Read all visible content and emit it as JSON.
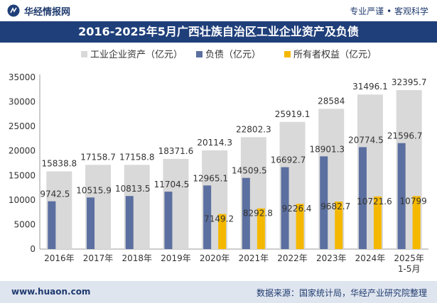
{
  "header": {
    "brand": "华经情报网",
    "tagline": "专业严谨 • 客观科学",
    "title": "2016-2025年5月广西壮族自治区工业企业资产及负债"
  },
  "footer": {
    "website": "www.huaon.com",
    "source": "数据来源：国家统计局，华经产业研究院整理"
  },
  "colors": {
    "assets": "#d9d9d9",
    "liabilities": "#5b6fa0",
    "equity": "#f5b800",
    "title_bg": "#1f3f7a",
    "footer_bg": "#dfe5ef"
  },
  "chart_data": {
    "type": "bar",
    "title": "",
    "xlabel": "",
    "ylabel": "",
    "categories": [
      "2016年",
      "2017年",
      "2018年",
      "2019年",
      "2020年",
      "2021年",
      "2022年",
      "2023年",
      "2024年",
      "2025年\n1-5月"
    ],
    "series": [
      {
        "name": "工业企业资产（亿元）",
        "values": [
          15838.8,
          17158.7,
          17158.8,
          18371.6,
          20114.3,
          22802.3,
          25919.1,
          28584,
          31496.1,
          32395.7
        ],
        "labels": [
          "15838.8",
          "17158.7",
          "17158.8",
          "18371.6",
          "20114.3",
          "22802.3",
          "25919.1",
          "28584",
          "31496.1",
          "32395.7"
        ]
      },
      {
        "name": "负债（亿元）",
        "values": [
          9742.5,
          10515.9,
          10813.5,
          11704.5,
          12965.1,
          14509.5,
          16692.7,
          18901.3,
          20774.5,
          21596.7
        ],
        "labels": [
          "9742.5",
          "10515.9",
          "10813.5",
          "11704.5",
          "12965.1",
          "14509.5",
          "16692.7",
          "18901.3",
          "20774.5",
          "21596.7"
        ]
      },
      {
        "name": "所有者权益（亿元）",
        "values": [
          null,
          null,
          null,
          null,
          7149.2,
          8292.8,
          9226.4,
          9682.7,
          10721.6,
          10799
        ],
        "labels": [
          "",
          "",
          "",
          "",
          "7149.2",
          "8292.8",
          "9226.4",
          "9682.7",
          "10721.6",
          "10799"
        ]
      }
    ],
    "ylim": [
      0,
      35000
    ],
    "yticks": [
      "0",
      "5000",
      "10000",
      "15000",
      "20000",
      "25000",
      "30000",
      "35000"
    ],
    "legend_position": "top",
    "grid": false
  }
}
